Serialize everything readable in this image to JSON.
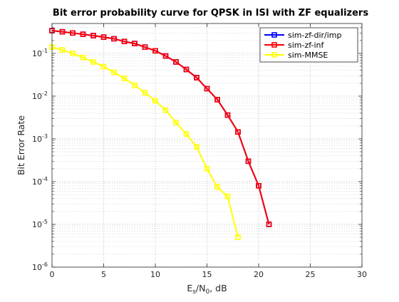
{
  "chart_data": {
    "type": "line",
    "title": "Bit error probability curve for QPSK in ISI with ZF equalizers",
    "xlabel": "E_s/N_0, dB",
    "xlabel_parts": {
      "main": "E",
      "sub": "s",
      "mid": "/N",
      "sub2": "0",
      "tail": ", dB"
    },
    "ylabel": "Bit Error Rate",
    "xlim": [
      0,
      30
    ],
    "ylim": [
      1e-06,
      0.5
    ],
    "yscale": "log",
    "xticks": [
      0,
      5,
      10,
      15,
      20,
      25,
      30
    ],
    "yticks": [
      {
        "value": 1e-06,
        "base": "10",
        "exp": "-6"
      },
      {
        "value": 1e-05,
        "base": "10",
        "exp": "-5"
      },
      {
        "value": 0.0001,
        "base": "10",
        "exp": "-4"
      },
      {
        "value": 0.001,
        "base": "10",
        "exp": "-3"
      },
      {
        "value": 0.01,
        "base": "10",
        "exp": "-2"
      },
      {
        "value": 0.1,
        "base": "10",
        "exp": "-1"
      }
    ],
    "grid": true,
    "legend_position": "top-right",
    "series": [
      {
        "name": "sim-zf-dir/imp",
        "color": "#0000ff",
        "x": [
          0,
          1,
          2,
          3,
          4,
          5,
          6,
          7,
          8,
          9,
          10,
          11,
          12,
          13,
          14,
          15,
          16,
          17,
          18,
          19,
          20,
          21
        ],
        "y": [
          0.34,
          0.32,
          0.3,
          0.28,
          0.26,
          0.24,
          0.22,
          0.19,
          0.17,
          0.14,
          0.115,
          0.087,
          0.063,
          0.042,
          0.027,
          0.015,
          0.0083,
          0.0036,
          0.00145,
          0.0003,
          8e-05,
          1e-05
        ]
      },
      {
        "name": "sim-zf-inf",
        "color": "#ff0000",
        "x": [
          0,
          1,
          2,
          3,
          4,
          5,
          6,
          7,
          8,
          9,
          10,
          11,
          12,
          13,
          14,
          15,
          16,
          17,
          18,
          19,
          20,
          21
        ],
        "y": [
          0.34,
          0.32,
          0.3,
          0.28,
          0.26,
          0.24,
          0.22,
          0.19,
          0.17,
          0.14,
          0.115,
          0.087,
          0.063,
          0.042,
          0.027,
          0.015,
          0.0083,
          0.0036,
          0.00145,
          0.0003,
          8e-05,
          1e-05
        ]
      },
      {
        "name": "sim-MMSE",
        "color": "#ffff00",
        "x": [
          0,
          1,
          2,
          3,
          4,
          5,
          6,
          7,
          8,
          9,
          10,
          11,
          12,
          13,
          14,
          15,
          16,
          17,
          18
        ],
        "y": [
          0.14,
          0.12,
          0.1,
          0.08,
          0.063,
          0.049,
          0.036,
          0.026,
          0.018,
          0.012,
          0.0078,
          0.0047,
          0.0024,
          0.0013,
          0.00065,
          0.0002,
          7.5e-05,
          4.5e-05,
          5e-06
        ]
      }
    ]
  }
}
